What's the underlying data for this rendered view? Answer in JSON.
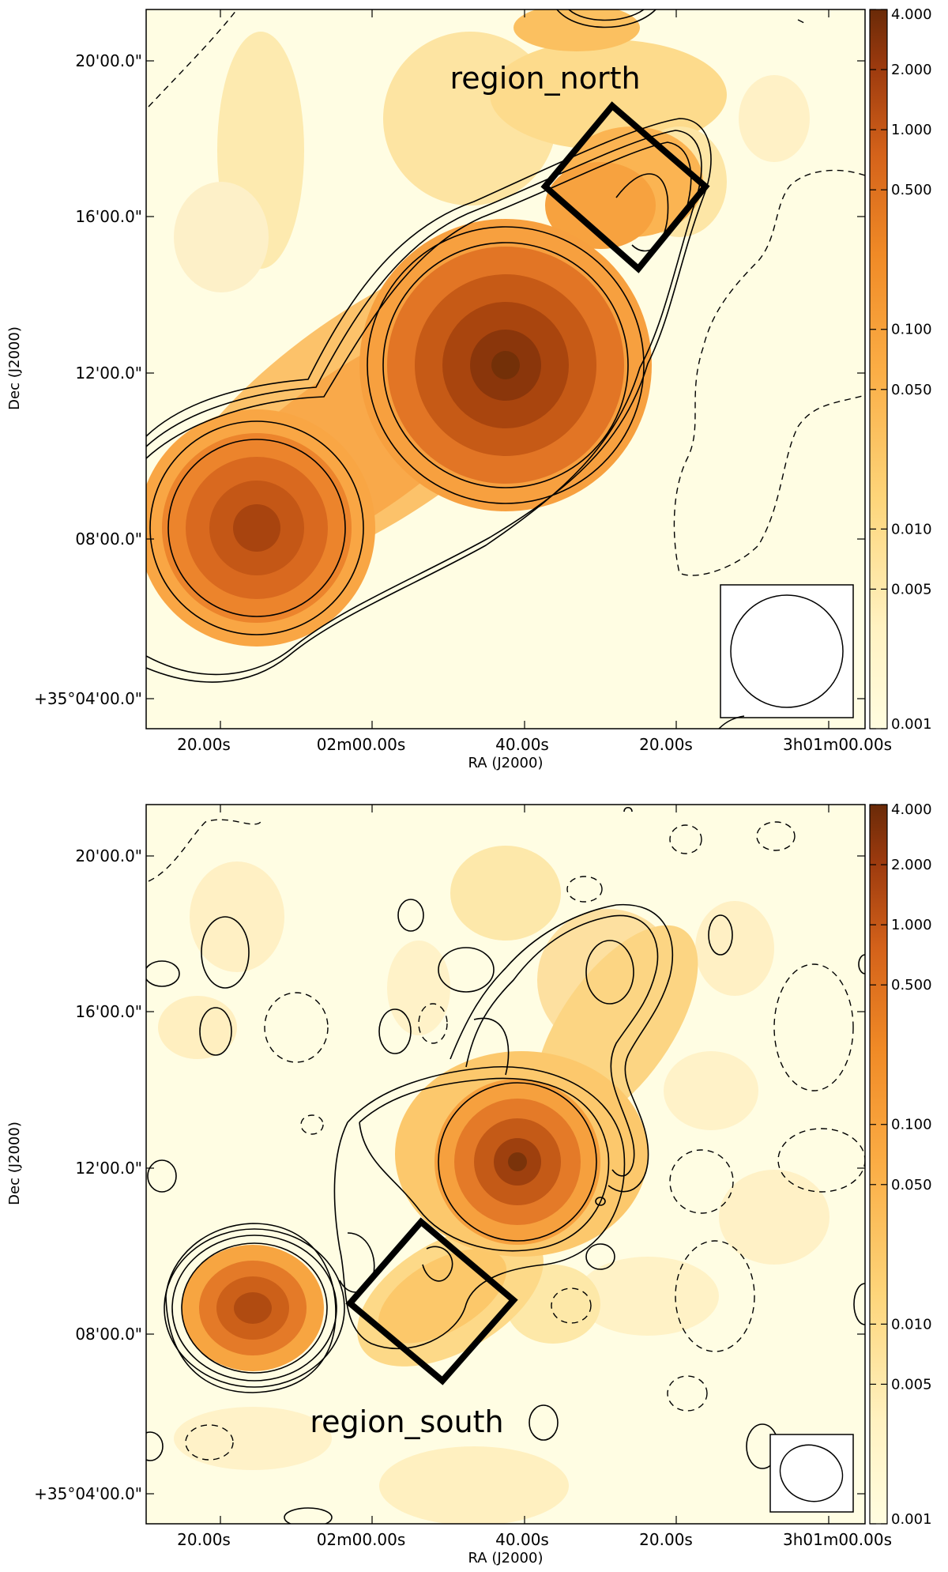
{
  "chart_data": [
    {
      "type": "heatmap",
      "panel": "top",
      "xlabel": "RA (J2000)",
      "ylabel": "Dec (J2000)",
      "x_tick_labels": [
        "20.00s",
        "02m00.00s",
        "40.00s",
        "20.00s",
        "3h01m00.00s"
      ],
      "y_tick_labels": [
        "20'00.0\"",
        "16'00.0\"",
        "12'00.0\"",
        "08'00.0\"",
        "+35°04'00.0\""
      ],
      "colorbar": {
        "scale": "log",
        "range": [
          0.001,
          4.0
        ],
        "tick_values": [
          4.0,
          2.0,
          1.0,
          0.5,
          0.1,
          0.05,
          0.01,
          0.005,
          0.001
        ],
        "tick_labels": [
          "4.000",
          "2.000",
          "1.000",
          "0.500",
          "0.100",
          "0.050",
          "0.010",
          "0.005",
          "0.001"
        ]
      },
      "region_label": "region_north",
      "annotations": [
        "region_north box (rotated square)",
        "beam ellipse inset bottom-right",
        "solid contours positive, dashed negative"
      ]
    },
    {
      "type": "heatmap",
      "panel": "bottom",
      "xlabel": "RA (J2000)",
      "ylabel": "Dec (J2000)",
      "x_tick_labels": [
        "20.00s",
        "02m00.00s",
        "40.00s",
        "20.00s",
        "3h01m00.00s"
      ],
      "y_tick_labels": [
        "20'00.0\"",
        "16'00.0\"",
        "12'00.0\"",
        "08'00.0\"",
        "+35°04'00.0\""
      ],
      "colorbar": {
        "scale": "log",
        "range": [
          0.001,
          4.0
        ],
        "tick_values": [
          4.0,
          2.0,
          1.0,
          0.5,
          0.1,
          0.05,
          0.01,
          0.005,
          0.001
        ],
        "tick_labels": [
          "4.000",
          "2.000",
          "1.000",
          "0.500",
          "0.100",
          "0.050",
          "0.010",
          "0.005",
          "0.001"
        ]
      },
      "region_label": "region_south",
      "annotations": [
        "region_south box (rotated square)",
        "beam ellipse inset bottom-right",
        "solid contours positive, dashed negative"
      ]
    }
  ]
}
